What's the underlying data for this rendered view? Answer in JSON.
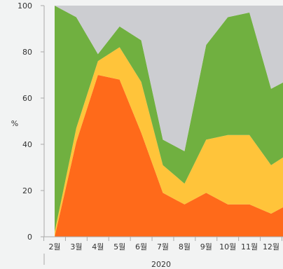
{
  "chart_data": {
    "type": "area",
    "stacking": "percent",
    "categories": [
      "2월",
      "3월",
      "4월",
      "5월",
      "6월",
      "7월",
      "8월",
      "9월",
      "10월",
      "11월",
      "12월",
      ""
    ],
    "group_label": "2020",
    "ylabel": "%",
    "ylim": [
      0,
      100
    ],
    "yticks": [
      0,
      20,
      40,
      60,
      80,
      100
    ],
    "grid": false,
    "legend": "none",
    "series": [
      {
        "color": "#ff6a1a",
        "values": [
          0,
          41,
          70,
          68,
          45,
          19,
          14,
          19,
          14,
          14,
          10,
          15
        ]
      },
      {
        "color": "#ffc43a",
        "values": [
          2,
          6,
          6,
          14,
          22,
          12,
          9,
          23,
          30,
          30,
          21,
          22
        ]
      },
      {
        "color": "#70b040",
        "values": [
          98,
          48,
          3,
          9,
          18,
          11,
          14,
          41,
          51,
          53,
          33,
          32
        ]
      },
      {
        "color": "#cccdd1",
        "values": [
          0,
          5,
          21,
          9,
          15,
          58,
          63,
          17,
          5,
          3,
          36,
          31
        ]
      }
    ]
  }
}
